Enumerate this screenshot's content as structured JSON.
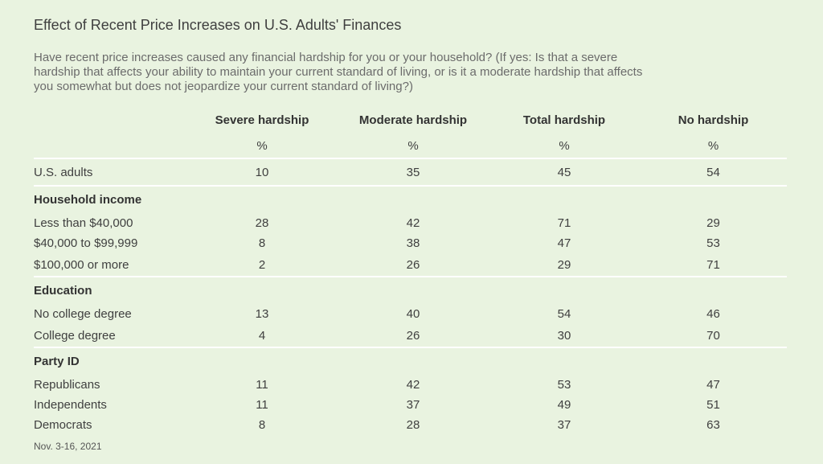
{
  "chart_data": {
    "type": "table",
    "title": "Effect of Recent Price Increases on U.S. Adults' Finances",
    "subtitle": "Have recent price increases caused any financial hardship for you or your household? (If yes: Is that a severe hardship that affects your ability to maintain your current standard of living, or is it a moderate hardship that affects you somewhat but does not jeopardize your current standard of living?)",
    "columns": [
      "Severe hardship",
      "Moderate hardship",
      "Total hardship",
      "No hardship"
    ],
    "unit": "%",
    "total": {
      "label": "U.S. adults",
      "values": [
        "10",
        "35",
        "45",
        "54"
      ]
    },
    "groups": [
      {
        "name": "Household income",
        "rows": [
          {
            "label": "Less than $40,000",
            "values": [
              "28",
              "42",
              "71",
              "29"
            ]
          },
          {
            "label": "$40,000 to $99,999",
            "values": [
              "8",
              "38",
              "47",
              "53"
            ]
          },
          {
            "label": "$100,000 or more",
            "values": [
              "2",
              "26",
              "29",
              "71"
            ]
          }
        ]
      },
      {
        "name": "Education",
        "rows": [
          {
            "label": "No college degree",
            "values": [
              "13",
              "40",
              "54",
              "46"
            ]
          },
          {
            "label": "College degree",
            "values": [
              "4",
              "26",
              "30",
              "70"
            ]
          }
        ]
      },
      {
        "name": "Party ID",
        "rows": [
          {
            "label": "Republicans",
            "values": [
              "11",
              "42",
              "53",
              "47"
            ]
          },
          {
            "label": "Independents",
            "values": [
              "11",
              "37",
              "49",
              "51"
            ]
          },
          {
            "label": "Democrats",
            "values": [
              "8",
              "28",
              "37",
              "63"
            ]
          }
        ]
      }
    ],
    "footnote": "Nov. 3-16, 2021"
  }
}
